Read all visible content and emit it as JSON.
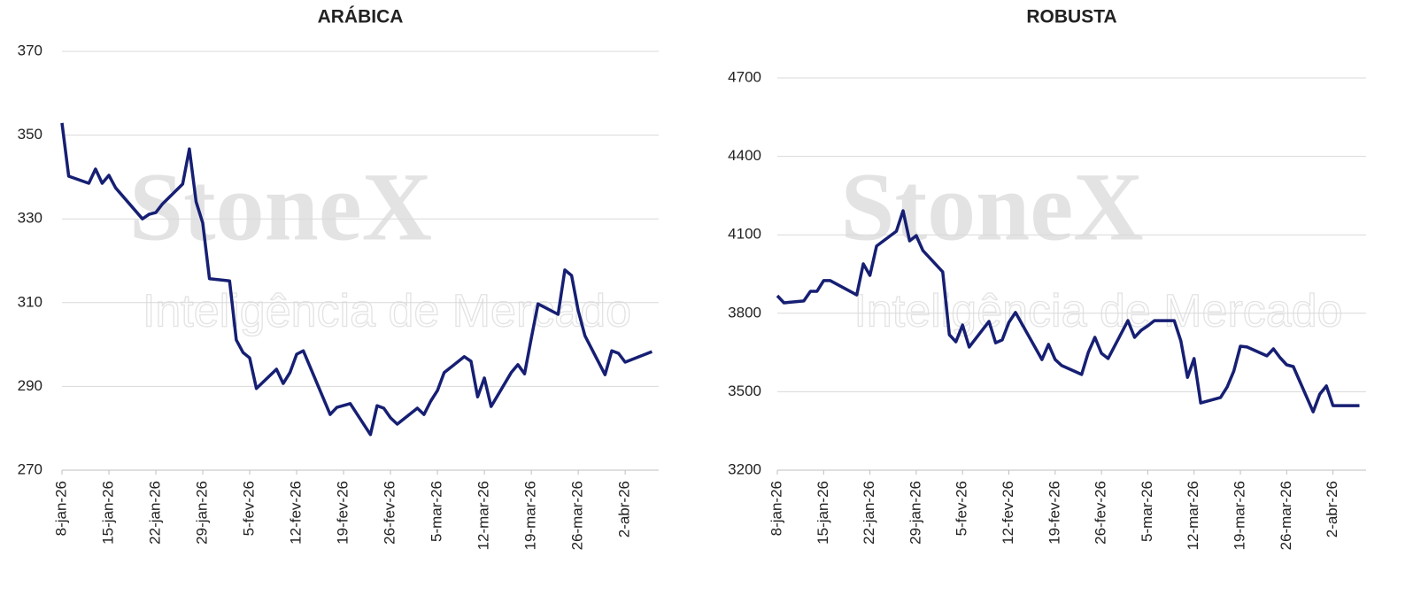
{
  "chart_data": [
    {
      "type": "line",
      "title": "ARÁBICA",
      "watermark_logo": "StoneX",
      "watermark_text": "Inteligência de Mercado",
      "x": [
        "2026-01-08",
        "2026-01-09",
        "2026-01-12",
        "2026-01-13",
        "2026-01-14",
        "2026-01-15",
        "2026-01-16",
        "2026-01-20",
        "2026-01-21",
        "2026-01-22",
        "2026-01-23",
        "2026-01-26",
        "2026-01-27",
        "2026-01-28",
        "2026-01-29",
        "2026-01-30",
        "2026-02-02",
        "2026-02-03",
        "2026-02-04",
        "2026-02-05",
        "2026-02-06",
        "2026-02-09",
        "2026-02-10",
        "2026-02-11",
        "2026-02-12",
        "2026-02-13",
        "2026-02-17",
        "2026-02-18",
        "2026-02-20",
        "2026-02-23",
        "2026-02-24",
        "2026-02-25",
        "2026-02-26",
        "2026-02-27",
        "2026-03-02",
        "2026-03-03",
        "2026-03-04",
        "2026-03-05",
        "2026-03-06",
        "2026-03-09",
        "2026-03-10",
        "2026-03-11",
        "2026-03-12",
        "2026-03-13",
        "2026-03-16",
        "2026-03-17",
        "2026-03-18",
        "2026-03-19",
        "2026-03-20",
        "2026-03-23",
        "2026-03-24",
        "2026-03-25",
        "2026-03-26",
        "2026-03-27",
        "2026-03-30",
        "2026-03-31",
        "2026-04-01",
        "2026-04-02",
        "2026-04-06"
      ],
      "series": [
        {
          "color": "#161f73",
          "values": [
            352.9,
            340.2,
            338.5,
            341.9,
            338.5,
            340.4,
            337.4,
            330.0,
            331.1,
            331.5,
            333.6,
            338.3,
            346.7,
            334.1,
            329.0,
            315.7,
            315.2,
            301.1,
            298.1,
            296.8,
            289.5,
            294.1,
            290.7,
            293.3,
            297.7,
            298.5,
            283.3,
            285.0,
            285.9,
            278.5,
            285.4,
            284.8,
            282.5,
            281.0,
            284.8,
            283.3,
            286.5,
            289.0,
            293.3,
            297.1,
            296.0,
            287.5,
            292.0,
            285.2,
            293.3,
            295.2,
            293.0,
            301.5,
            309.7,
            307.2,
            317.8,
            316.5,
            308.1,
            302.1,
            292.8,
            298.5,
            297.9,
            295.8,
            298.3
          ]
        }
      ],
      "xlim": [
        "2026-01-08",
        "2026-04-07"
      ],
      "xticks": [
        {
          "value": "2026-01-08",
          "label": "8-jan-26"
        },
        {
          "value": "2026-01-15",
          "label": "15-jan-26"
        },
        {
          "value": "2026-01-22",
          "label": "22-jan-26"
        },
        {
          "value": "2026-01-29",
          "label": "29-jan-26"
        },
        {
          "value": "2026-02-05",
          "label": "5-fev-26"
        },
        {
          "value": "2026-02-12",
          "label": "12-fev-26"
        },
        {
          "value": "2026-02-19",
          "label": "19-fev-26"
        },
        {
          "value": "2026-02-26",
          "label": "26-fev-26"
        },
        {
          "value": "2026-03-05",
          "label": "5-mar-26"
        },
        {
          "value": "2026-03-12",
          "label": "12-mar-26"
        },
        {
          "value": "2026-03-19",
          "label": "19-mar-26"
        },
        {
          "value": "2026-03-26",
          "label": "26-mar-26"
        },
        {
          "value": "2026-04-02",
          "label": "2-abr-26"
        }
      ],
      "ylim": [
        270,
        370
      ],
      "yticks": [
        270,
        290,
        310,
        330,
        350,
        370
      ],
      "grid": true
    },
    {
      "type": "line",
      "title": "ROBUSTA",
      "watermark_logo": "StoneX",
      "watermark_text": "Inteligência de Mercado",
      "x": [
        "2026-01-08",
        "2026-01-09",
        "2026-01-12",
        "2026-01-13",
        "2026-01-14",
        "2026-01-15",
        "2026-01-16",
        "2026-01-20",
        "2026-01-21",
        "2026-01-22",
        "2026-01-23",
        "2026-01-26",
        "2026-01-27",
        "2026-01-28",
        "2026-01-29",
        "2026-01-30",
        "2026-02-02",
        "2026-02-03",
        "2026-02-04",
        "2026-02-05",
        "2026-02-06",
        "2026-02-09",
        "2026-02-10",
        "2026-02-11",
        "2026-02-12",
        "2026-02-13",
        "2026-02-17",
        "2026-02-18",
        "2026-02-19",
        "2026-02-20",
        "2026-02-23",
        "2026-02-24",
        "2026-02-25",
        "2026-02-26",
        "2026-02-27",
        "2026-03-02",
        "2026-03-03",
        "2026-03-04",
        "2026-03-05",
        "2026-03-06",
        "2026-03-09",
        "2026-03-10",
        "2026-03-11",
        "2026-03-12",
        "2026-03-13",
        "2026-03-16",
        "2026-03-17",
        "2026-03-18",
        "2026-03-19",
        "2026-03-20",
        "2026-03-23",
        "2026-03-24",
        "2026-03-25",
        "2026-03-26",
        "2026-03-27",
        "2026-03-30",
        "2026-03-31",
        "2026-04-01",
        "2026-04-02",
        "2026-04-06"
      ],
      "series": [
        {
          "color": "#161f73",
          "values": [
            3867,
            3840,
            3847,
            3884,
            3884,
            3925,
            3925,
            3870,
            3989,
            3945,
            4057,
            4114,
            4192,
            4077,
            4097,
            4040,
            3958,
            3718,
            3691,
            3755,
            3671,
            3769,
            3687,
            3698,
            3765,
            3803,
            3623,
            3681,
            3623,
            3600,
            3566,
            3650,
            3708,
            3647,
            3627,
            3772,
            3708,
            3735,
            3752,
            3772,
            3772,
            3694,
            3555,
            3627,
            3457,
            3478,
            3518,
            3579,
            3674,
            3671,
            3637,
            3664,
            3630,
            3603,
            3596,
            3423,
            3491,
            3522,
            3447,
            3447
          ]
        }
      ],
      "xlim": [
        "2026-01-08",
        "2026-04-07"
      ],
      "xticks": [
        {
          "value": "2026-01-08",
          "label": "8-jan-26"
        },
        {
          "value": "2026-01-15",
          "label": "15-jan-26"
        },
        {
          "value": "2026-01-22",
          "label": "22-jan-26"
        },
        {
          "value": "2026-01-29",
          "label": "29-jan-26"
        },
        {
          "value": "2026-02-05",
          "label": "5-fev-26"
        },
        {
          "value": "2026-02-12",
          "label": "12-fev-26"
        },
        {
          "value": "2026-02-19",
          "label": "19-fev-26"
        },
        {
          "value": "2026-02-26",
          "label": "26-fev-26"
        },
        {
          "value": "2026-03-05",
          "label": "5-mar-26"
        },
        {
          "value": "2026-03-12",
          "label": "12-mar-26"
        },
        {
          "value": "2026-03-19",
          "label": "19-mar-26"
        },
        {
          "value": "2026-03-26",
          "label": "26-mar-26"
        },
        {
          "value": "2026-04-02",
          "label": "2-abr-26"
        }
      ],
      "ylim": [
        3200,
        4700
      ],
      "yticks": [
        3200,
        3500,
        3800,
        4100,
        4400,
        4700
      ],
      "grid": true
    }
  ]
}
